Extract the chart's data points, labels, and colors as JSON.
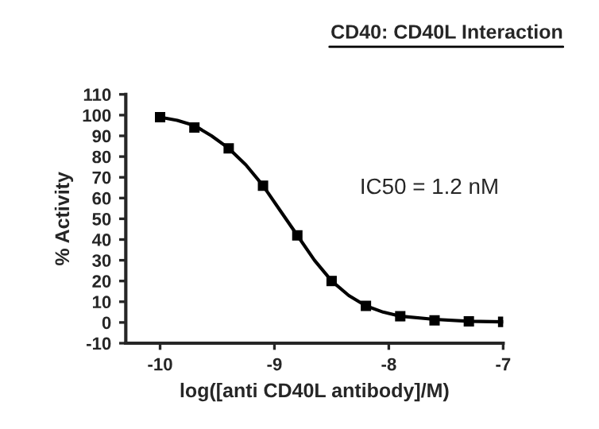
{
  "chart_data": {
    "type": "scatter",
    "title": "CD40: CD40L Interaction",
    "xlabel": "log([anti CD40L antibody]/M)",
    "ylabel": "% Activity",
    "annotations": [
      "IC50 = 1.2 nM"
    ],
    "series": [
      {
        "color": "#000000",
        "marker": "square",
        "x": [
          -10,
          -9.7,
          -9.4,
          -9.1,
          -8.8,
          -8.5,
          -8.2,
          -7.9,
          -7.6,
          -7.3,
          -7.0
        ],
        "values": [
          99,
          94,
          84,
          66,
          42,
          20,
          8,
          3,
          1,
          0.5,
          0.3
        ]
      },
      {
        "type": "line",
        "color": "#000000",
        "marker": "none",
        "line_style": "solid",
        "x": [
          -10,
          -9.85,
          -9.7,
          -9.55,
          -9.4,
          -9.25,
          -9.1,
          -8.95,
          -8.8,
          -8.65,
          -8.5,
          -8.35,
          -8.2,
          -8.05,
          -7.9,
          -7.6,
          -7.3,
          -7.0
        ],
        "values": [
          99,
          97.5,
          95,
          90,
          84,
          76,
          66,
          54,
          42,
          30,
          20,
          13,
          8,
          5,
          3,
          1.5,
          0.6,
          0.3
        ]
      }
    ],
    "xlim": [
      -10.3,
      -7.0
    ],
    "ylim": [
      -10,
      110
    ],
    "xticks": [
      -10,
      -9,
      -8,
      -7
    ],
    "yticks": [
      -10,
      0,
      10,
      20,
      30,
      40,
      50,
      60,
      70,
      80,
      90,
      100,
      110
    ],
    "grid": false,
    "legend": false
  }
}
